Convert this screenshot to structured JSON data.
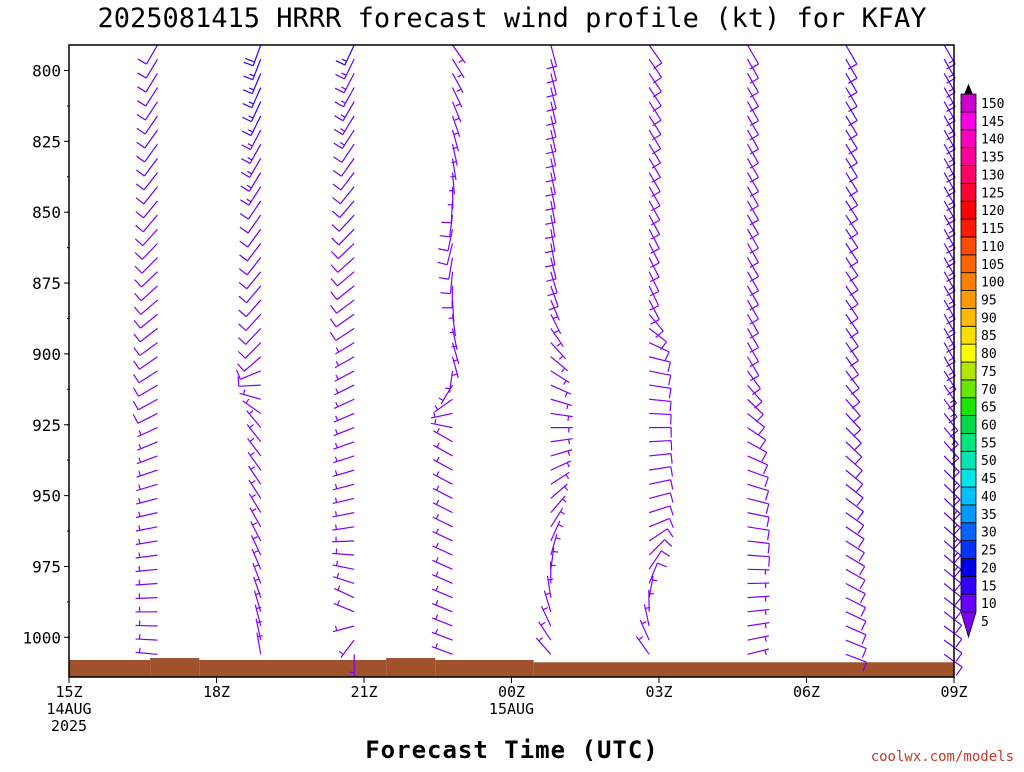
{
  "chart_data": {
    "type": "wind_barb_profile",
    "title": "2025081415 HRRR forecast wind profile (kt) for KFAY",
    "xlabel": "Forecast Time (UTC)",
    "x_ticks": [
      {
        "hour": 0,
        "label": "15Z",
        "sub": [
          "14AUG",
          "2025"
        ]
      },
      {
        "hour": 3,
        "label": "18Z",
        "sub": []
      },
      {
        "hour": 6,
        "label": "21Z",
        "sub": []
      },
      {
        "hour": 9,
        "label": "00Z",
        "sub": [
          "15AUG"
        ]
      },
      {
        "hour": 12,
        "label": "03Z",
        "sub": []
      },
      {
        "hour": 15,
        "label": "06Z",
        "sub": []
      },
      {
        "hour": 18,
        "label": "09Z",
        "sub": []
      }
    ],
    "y_ticks": [
      800,
      825,
      850,
      875,
      900,
      925,
      950,
      975,
      1000
    ],
    "ylim_hPa": [
      791,
      1014
    ],
    "xlim_hour": [
      0,
      18
    ],
    "colorbar": {
      "units": "kt",
      "labels": [
        5,
        10,
        15,
        20,
        25,
        30,
        35,
        40,
        45,
        50,
        55,
        60,
        65,
        70,
        75,
        80,
        85,
        90,
        95,
        100,
        105,
        110,
        115,
        120,
        125,
        130,
        135,
        140,
        145,
        150
      ],
      "colors": [
        "#7f00ff",
        "#6600ff",
        "#3300ff",
        "#0000e6",
        "#0033ff",
        "#0066ff",
        "#0099ff",
        "#00bfff",
        "#00e5e5",
        "#00e5b2",
        "#00e57f",
        "#00d94c",
        "#19e600",
        "#66e600",
        "#b2e600",
        "#ffff00",
        "#ffdd00",
        "#ffbb00",
        "#ff9900",
        "#ff8000",
        "#ff6600",
        "#ff4d00",
        "#ff1a00",
        "#ff0000",
        "#ff0033",
        "#ff0066",
        "#ff0099",
        "#ff00bf",
        "#ff00e6",
        "#cc00cc"
      ]
    },
    "terrain_color": "#a0522d",
    "profiles": [
      {
        "hour": 1.8,
        "min_p": 791,
        "max_p": 1006,
        "wind": [
          [
            791,
            210,
            12
          ],
          [
            850,
            220,
            10
          ],
          [
            900,
            235,
            8
          ],
          [
            950,
            255,
            7
          ],
          [
            1006,
            275,
            6
          ]
        ]
      },
      {
        "hour": 3.9,
        "min_p": 791,
        "max_p": 1006,
        "wind": [
          [
            791,
            200,
            18
          ],
          [
            850,
            215,
            12
          ],
          [
            900,
            225,
            9
          ],
          [
            925,
            320,
            6
          ],
          [
            960,
            330,
            7
          ],
          [
            1006,
            350,
            6
          ]
        ]
      },
      {
        "hour": 5.8,
        "min_p": 791,
        "max_p": 1006,
        "wind": [
          [
            791,
            205,
            15
          ],
          [
            830,
            215,
            12
          ],
          [
            900,
            240,
            7
          ],
          [
            960,
            260,
            6
          ],
          [
            990,
            300,
            6
          ],
          [
            1006,
            180,
            6
          ]
        ]
      },
      {
        "hour": 7.8,
        "min_p": 791,
        "max_p": 1008,
        "wind": [
          [
            791,
            145,
            6
          ],
          [
            830,
            170,
            6
          ],
          [
            860,
            195,
            9
          ],
          [
            900,
            160,
            6
          ],
          [
            930,
            300,
            7
          ],
          [
            1008,
            290,
            7
          ]
        ]
      },
      {
        "hour": 9.8,
        "min_p": 791,
        "max_p": 1008,
        "wind": [
          [
            791,
            165,
            9
          ],
          [
            860,
            170,
            9
          ],
          [
            885,
            155,
            7
          ],
          [
            920,
            100,
            7
          ],
          [
            1008,
            315,
            6
          ]
        ]
      },
      {
        "hour": 11.8,
        "min_p": 791,
        "max_p": 1008,
        "wind": [
          [
            791,
            145,
            9
          ],
          [
            880,
            155,
            9
          ],
          [
            900,
            105,
            8
          ],
          [
            960,
            70,
            8
          ],
          [
            1008,
            320,
            7
          ]
        ]
      },
      {
        "hour": 13.8,
        "min_p": 791,
        "max_p": 1008,
        "wind": [
          [
            791,
            150,
            9
          ],
          [
            900,
            150,
            9
          ],
          [
            940,
            110,
            8
          ],
          [
            1008,
            75,
            7
          ]
        ]
      },
      {
        "hour": 15.8,
        "min_p": 791,
        "max_p": 1008,
        "wind": [
          [
            791,
            150,
            12
          ],
          [
            900,
            145,
            12
          ],
          [
            940,
            130,
            11
          ],
          [
            1008,
            110,
            8
          ]
        ]
      },
      {
        "hour": 17.8,
        "min_p": 791,
        "max_p": 1008,
        "wind": [
          [
            791,
            150,
            13
          ],
          [
            900,
            150,
            13
          ],
          [
            940,
            135,
            13
          ],
          [
            1008,
            125,
            12
          ]
        ]
      }
    ],
    "terrain": [
      {
        "h0": 0,
        "h1": 1.65,
        "top_p": 1008.0
      },
      {
        "h0": 1.65,
        "h1": 2.65,
        "top_p": 1007.3
      },
      {
        "h0": 2.65,
        "h1": 6.45,
        "top_p": 1008.0
      },
      {
        "h0": 6.45,
        "h1": 7.45,
        "top_p": 1007.3
      },
      {
        "h0": 7.45,
        "h1": 9.45,
        "top_p": 1008.0
      },
      {
        "h0": 9.45,
        "h1": 18,
        "top_p": 1008.8
      }
    ]
  },
  "credit": "coolwx.com/models"
}
